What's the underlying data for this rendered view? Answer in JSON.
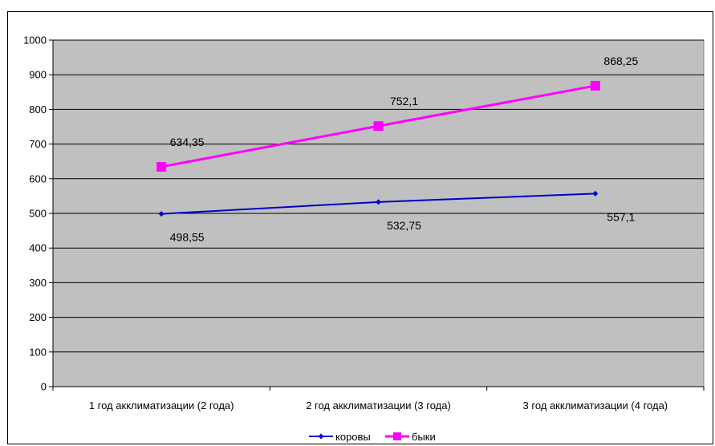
{
  "chart_data": {
    "type": "line",
    "categories": [
      "1 год акклиматизации (2 года)",
      "2 год акклиматизации (3 года)",
      "3 год акклиматизации (4 года)"
    ],
    "series": [
      {
        "name": "коровы",
        "values": [
          498.55,
          532.75,
          557.1
        ],
        "color": "#0000CC",
        "marker": "diamond",
        "labels": [
          "498,55",
          "532,75",
          "557,1"
        ]
      },
      {
        "name": "быки",
        "values": [
          634.35,
          752.1,
          868.25
        ],
        "color": "#FF00FF",
        "marker": "square",
        "labels": [
          "634,35",
          "752,1",
          "868,25"
        ]
      }
    ],
    "ylim": [
      0,
      1000
    ],
    "yticks": [
      0,
      100,
      200,
      300,
      400,
      500,
      600,
      700,
      800,
      900,
      1000
    ],
    "grid": true,
    "plot_background": "#C0C0C0",
    "legend_position": "bottom"
  }
}
